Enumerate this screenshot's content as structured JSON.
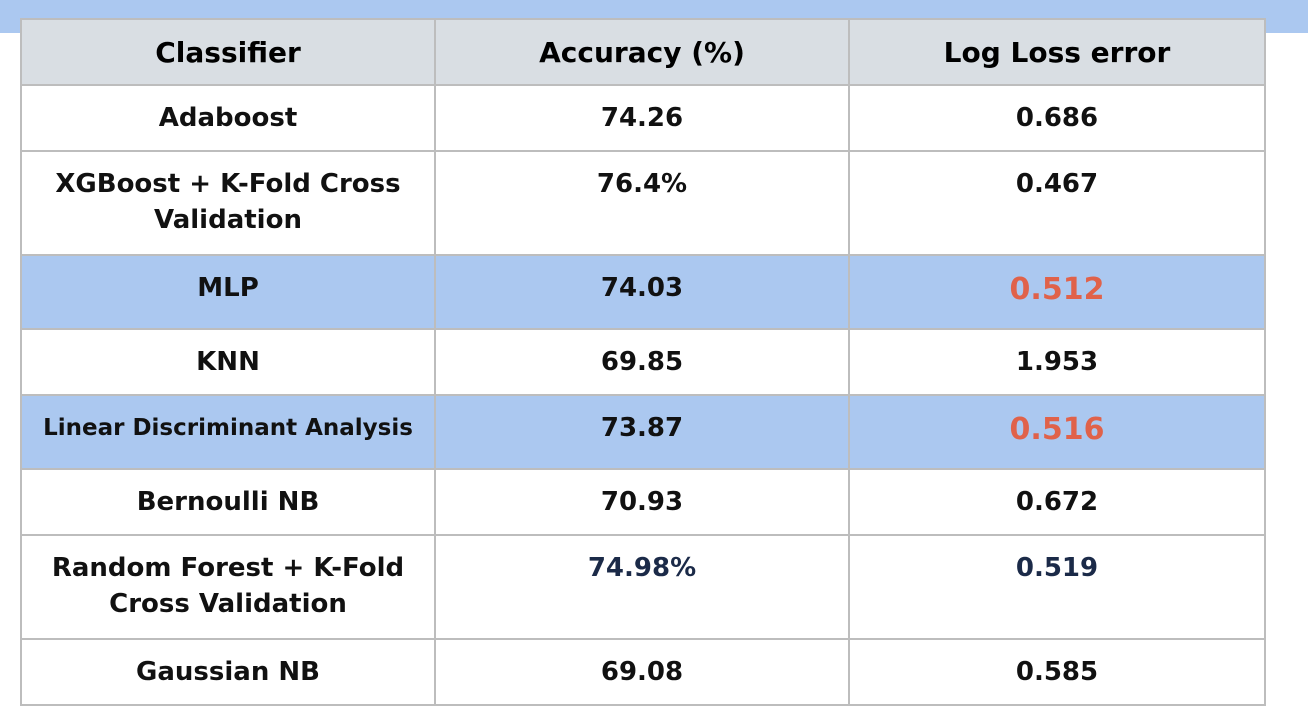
{
  "table": {
    "headers": [
      "Classifier",
      "Accuracy (%)",
      "Log Loss error"
    ],
    "rows": [
      {
        "classifier": "Adaboost",
        "accuracy": "74.26",
        "logloss": "0.686"
      },
      {
        "classifier": "XGBoost + K-Fold Cross Validation",
        "accuracy": "76.4%",
        "logloss": "0.467"
      },
      {
        "classifier": "MLP",
        "accuracy": "74.03",
        "logloss": "0.512"
      },
      {
        "classifier": "KNN",
        "accuracy": "69.85",
        "logloss": "1.953"
      },
      {
        "classifier": "Linear Discriminant Analysis",
        "accuracy": "73.87",
        "logloss": "0.516"
      },
      {
        "classifier": "Bernoulli NB",
        "accuracy": "70.93",
        "logloss": "0.672"
      },
      {
        "classifier": "Random Forest + K-Fold Cross Validation",
        "accuracy": "74.98%",
        "logloss": "0.519"
      },
      {
        "classifier": "Gaussian NB",
        "accuracy": "69.08",
        "logloss": "0.585"
      }
    ]
  },
  "colors": {
    "band": "#abc8f0",
    "header_bg": "#d9dee3",
    "highlight_row": "#abc8f0",
    "accent_value": "#e0624a",
    "navy_value": "#1b2a48"
  }
}
